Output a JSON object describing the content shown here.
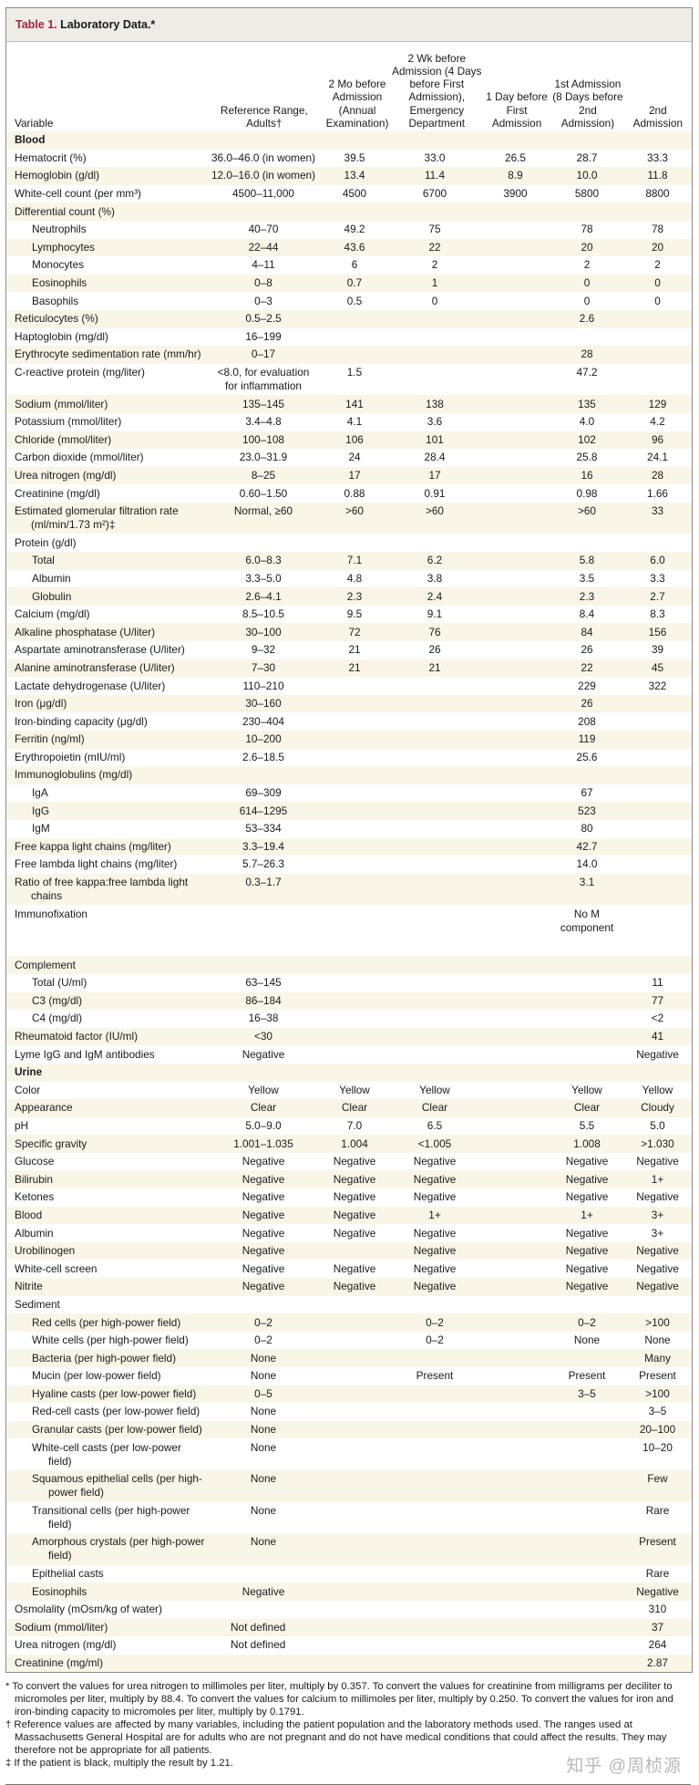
{
  "table": {
    "title_number": "Table 1.",
    "title_text": " Laboratory Data.*",
    "headers": [
      "Variable",
      "Reference Range, Adults†",
      "2 Mo before Admission (Annual Examination)",
      "2 Wk before Admission (4 Days before First Admission), Emergency Department",
      "1 Day before First Admission",
      "1st Admission (8 Days before 2nd Admission)",
      "2nd Admission"
    ],
    "rows": [
      {
        "type": "section",
        "cells": [
          "Blood",
          "",
          "",
          "",
          "",
          "",
          ""
        ]
      },
      {
        "cells": [
          "Hematocrit (%)",
          "36.0–46.0 (in women)",
          "39.5",
          "33.0",
          "26.5",
          "28.7",
          "33.3"
        ]
      },
      {
        "cells": [
          "Hemoglobin (g/dl)",
          "12.0–16.0 (in women)",
          "13.4",
          "11.4",
          "8.9",
          "10.0",
          "11.8"
        ]
      },
      {
        "cells": [
          "White-cell count (per mm³)",
          "4500–11,000",
          "4500",
          "6700",
          "3900",
          "5800",
          "8800"
        ]
      },
      {
        "cells": [
          "Differential count (%)",
          "",
          "",
          "",
          "",
          "",
          ""
        ]
      },
      {
        "indent": true,
        "cells": [
          "Neutrophils",
          "40–70",
          "49.2",
          "75",
          "",
          "78",
          "78"
        ]
      },
      {
        "indent": true,
        "cells": [
          "Lymphocytes",
          "22–44",
          "43.6",
          "22",
          "",
          "20",
          "20"
        ]
      },
      {
        "indent": true,
        "cells": [
          "Monocytes",
          "4–11",
          "6",
          "2",
          "",
          "2",
          "2"
        ]
      },
      {
        "indent": true,
        "cells": [
          "Eosinophils",
          "0–8",
          "0.7",
          "1",
          "",
          "0",
          "0"
        ]
      },
      {
        "indent": true,
        "cells": [
          "Basophils",
          "0–3",
          "0.5",
          "0",
          "",
          "0",
          "0"
        ]
      },
      {
        "cells": [
          "Reticulocytes (%)",
          "0.5–2.5",
          "",
          "",
          "",
          "2.6",
          ""
        ]
      },
      {
        "cells": [
          "Haptoglobin (mg/dl)",
          "16–199",
          "",
          "",
          "",
          "",
          ""
        ]
      },
      {
        "cells": [
          "Erythrocyte sedimentation rate (mm/hr)",
          "0–17",
          "",
          "",
          "",
          "28",
          ""
        ]
      },
      {
        "cells": [
          "C-reactive protein (mg/liter)",
          "<8.0, for evaluation for inflammation",
          "1.5",
          "",
          "",
          "47.2",
          ""
        ]
      },
      {
        "cells": [
          "Sodium (mmol/liter)",
          "135–145",
          "141",
          "138",
          "",
          "135",
          "129"
        ]
      },
      {
        "cells": [
          "Potassium (mmol/liter)",
          "3.4–4.8",
          "4.1",
          "3.6",
          "",
          "4.0",
          "4.2"
        ]
      },
      {
        "cells": [
          "Chloride (mmol/liter)",
          "100–108",
          "106",
          "101",
          "",
          "102",
          "96"
        ]
      },
      {
        "cells": [
          "Carbon dioxide (mmol/liter)",
          "23.0–31.9",
          "24",
          "28.4",
          "",
          "25.8",
          "24.1"
        ]
      },
      {
        "cells": [
          "Urea nitrogen (mg/dl)",
          "8–25",
          "17",
          "17",
          "",
          "16",
          "28"
        ]
      },
      {
        "cells": [
          "Creatinine (mg/dl)",
          "0.60–1.50",
          "0.88",
          "0.91",
          "",
          "0.98",
          "1.66"
        ]
      },
      {
        "cells": [
          "Estimated glomerular filtration rate (ml/min/1.73 m²)‡",
          "Normal, ≥60",
          ">60",
          ">60",
          "",
          ">60",
          "33"
        ]
      },
      {
        "cells": [
          "Protein (g/dl)",
          "",
          "",
          "",
          "",
          "",
          ""
        ]
      },
      {
        "indent": true,
        "cells": [
          "Total",
          "6.0–8.3",
          "7.1",
          "6.2",
          "",
          "5.8",
          "6.0"
        ]
      },
      {
        "indent": true,
        "cells": [
          "Albumin",
          "3.3–5.0",
          "4.8",
          "3.8",
          "",
          "3.5",
          "3.3"
        ]
      },
      {
        "indent": true,
        "cells": [
          "Globulin",
          "2.6–4.1",
          "2.3",
          "2.4",
          "",
          "2.3",
          "2.7"
        ]
      },
      {
        "cells": [
          "Calcium (mg/dl)",
          "8.5–10.5",
          "9.5",
          "9.1",
          "",
          "8.4",
          "8.3"
        ]
      },
      {
        "cells": [
          "Alkaline phosphatase (U/liter)",
          "30–100",
          "72",
          "76",
          "",
          "84",
          "156"
        ]
      },
      {
        "cells": [
          "Aspartate aminotransferase (U/liter)",
          "9–32",
          "21",
          "26",
          "",
          "26",
          "39"
        ]
      },
      {
        "cells": [
          "Alanine aminotransferase (U/liter)",
          "7–30",
          "21",
          "21",
          "",
          "22",
          "45"
        ]
      },
      {
        "cells": [
          "Lactate dehydrogenase (U/liter)",
          "110–210",
          "",
          "",
          "",
          "229",
          "322"
        ]
      },
      {
        "cells": [
          "Iron (μg/dl)",
          "30–160",
          "",
          "",
          "",
          "26",
          ""
        ]
      },
      {
        "cells": [
          "Iron-binding capacity (μg/dl)",
          "230–404",
          "",
          "",
          "",
          "208",
          ""
        ]
      },
      {
        "cells": [
          "Ferritin (ng/ml)",
          "10–200",
          "",
          "",
          "",
          "119",
          ""
        ]
      },
      {
        "cells": [
          "Erythropoietin (mIU/ml)",
          "2.6–18.5",
          "",
          "",
          "",
          "25.6",
          ""
        ]
      },
      {
        "cells": [
          "Immunoglobulins (mg/dl)",
          "",
          "",
          "",
          "",
          "",
          ""
        ]
      },
      {
        "indent": true,
        "cells": [
          "IgA",
          "69–309",
          "",
          "",
          "",
          "67",
          ""
        ]
      },
      {
        "indent": true,
        "cells": [
          "IgG",
          "614–1295",
          "",
          "",
          "",
          "523",
          ""
        ]
      },
      {
        "indent": true,
        "cells": [
          "IgM",
          "53–334",
          "",
          "",
          "",
          "80",
          ""
        ]
      },
      {
        "cells": [
          "Free kappa light chains (mg/liter)",
          "3.3–19.4",
          "",
          "",
          "",
          "42.7",
          ""
        ]
      },
      {
        "cells": [
          "Free lambda light chains (mg/liter)",
          "5.7–26.3",
          "",
          "",
          "",
          "14.0",
          ""
        ]
      },
      {
        "cells": [
          "Ratio of free kappa:free lambda light chains",
          "0.3–1.7",
          "",
          "",
          "",
          "3.1",
          ""
        ]
      },
      {
        "tall": true,
        "cells": [
          "Immunofixation",
          "",
          "",
          "",
          "",
          "No M component",
          ""
        ]
      },
      {
        "cells": [
          "Complement",
          "",
          "",
          "",
          "",
          "",
          ""
        ]
      },
      {
        "indent": true,
        "cells": [
          "Total (U/ml)",
          "63–145",
          "",
          "",
          "",
          "",
          "11"
        ]
      },
      {
        "indent": true,
        "cells": [
          "C3 (mg/dl)",
          "86–184",
          "",
          "",
          "",
          "",
          "77"
        ]
      },
      {
        "indent": true,
        "cells": [
          "C4 (mg/dl)",
          "16–38",
          "",
          "",
          "",
          "",
          "<2"
        ]
      },
      {
        "cells": [
          "Rheumatoid factor (IU/ml)",
          "<30",
          "",
          "",
          "",
          "",
          "41"
        ]
      },
      {
        "cells": [
          "Lyme IgG and IgM antibodies",
          "Negative",
          "",
          "",
          "",
          "",
          "Negative"
        ]
      },
      {
        "type": "section",
        "cells": [
          "Urine",
          "",
          "",
          "",
          "",
          "",
          ""
        ]
      },
      {
        "cells": [
          "Color",
          "Yellow",
          "Yellow",
          "Yellow",
          "",
          "Yellow",
          "Yellow"
        ]
      },
      {
        "cells": [
          "Appearance",
          "Clear",
          "Clear",
          "Clear",
          "",
          "Clear",
          "Cloudy"
        ]
      },
      {
        "cells": [
          "pH",
          "5.0–9.0",
          "7.0",
          "6.5",
          "",
          "5.5",
          "5.0"
        ]
      },
      {
        "cells": [
          "Specific gravity",
          "1.001–1.035",
          "1.004",
          "<1.005",
          "",
          "1.008",
          ">1.030"
        ]
      },
      {
        "cells": [
          "Glucose",
          "Negative",
          "Negative",
          "Negative",
          "",
          "Negative",
          "Negative"
        ]
      },
      {
        "cells": [
          "Bilirubin",
          "Negative",
          "Negative",
          "Negative",
          "",
          "Negative",
          "1+"
        ]
      },
      {
        "cells": [
          "Ketones",
          "Negative",
          "Negative",
          "Negative",
          "",
          "Negative",
          "Negative"
        ]
      },
      {
        "cells": [
          "Blood",
          "Negative",
          "Negative",
          "1+",
          "",
          "1+",
          "3+"
        ]
      },
      {
        "cells": [
          "Albumin",
          "Negative",
          "Negative",
          "Negative",
          "",
          "Negative",
          "3+"
        ]
      },
      {
        "cells": [
          "Urobilinogen",
          "Negative",
          "",
          "Negative",
          "",
          "Negative",
          "Negative"
        ]
      },
      {
        "cells": [
          "White-cell screen",
          "Negative",
          "Negative",
          "Negative",
          "",
          "Negative",
          "Negative"
        ]
      },
      {
        "cells": [
          "Nitrite",
          "Negative",
          "Negative",
          "Negative",
          "",
          "Negative",
          "Negative"
        ]
      },
      {
        "cells": [
          "Sediment",
          "",
          "",
          "",
          "",
          "",
          ""
        ]
      },
      {
        "indent": true,
        "cells": [
          "Red cells (per high-power field)",
          "0–2",
          "",
          "0–2",
          "",
          "0–2",
          ">100"
        ]
      },
      {
        "indent": true,
        "cells": [
          "White cells (per high-power field)",
          "0–2",
          "",
          "0–2",
          "",
          "None",
          "None"
        ]
      },
      {
        "indent": true,
        "cells": [
          "Bacteria (per high-power field)",
          "None",
          "",
          "",
          "",
          "",
          "Many"
        ]
      },
      {
        "indent": true,
        "cells": [
          "Mucin (per low-power field)",
          "None",
          "",
          "Present",
          "",
          "Present",
          "Present"
        ]
      },
      {
        "indent": true,
        "cells": [
          "Hyaline casts (per low-power field)",
          "0–5",
          "",
          "",
          "",
          "3–5",
          ">100"
        ]
      },
      {
        "indent": true,
        "cells": [
          "Red-cell casts (per low-power field)",
          "None",
          "",
          "",
          "",
          "",
          "3–5"
        ]
      },
      {
        "indent": true,
        "cells": [
          "Granular casts (per low-power field)",
          "None",
          "",
          "",
          "",
          "",
          "20–100"
        ]
      },
      {
        "indent": true,
        "cells": [
          "White-cell casts (per low-power field)",
          "None",
          "",
          "",
          "",
          "",
          "10–20"
        ]
      },
      {
        "indent": true,
        "cells": [
          "Squamous epithelial cells (per high-power field)",
          "None",
          "",
          "",
          "",
          "",
          "Few"
        ]
      },
      {
        "indent": true,
        "cells": [
          "Transitional cells (per high-power field)",
          "None",
          "",
          "",
          "",
          "",
          "Rare"
        ]
      },
      {
        "indent": true,
        "cells": [
          "Amorphous crystals (per high-power field)",
          "None",
          "",
          "",
          "",
          "",
          "Present"
        ]
      },
      {
        "indent": true,
        "cells": [
          "Epithelial casts",
          "",
          "",
          "",
          "",
          "",
          "Rare"
        ]
      },
      {
        "indent": true,
        "cells": [
          "Eosinophils",
          "Negative",
          "",
          "",
          "",
          "",
          "Negative"
        ]
      },
      {
        "cells": [
          "Osmolality (mOsm/kg of water)",
          "",
          "",
          "",
          "",
          "",
          "310"
        ]
      },
      {
        "refleft": true,
        "cells": [
          "Sodium (mmol/liter)",
          "Not defined",
          "",
          "",
          "",
          "",
          "37"
        ]
      },
      {
        "refleft": true,
        "cells": [
          "Urea nitrogen (mg/dl)",
          "Not defined",
          "",
          "",
          "",
          "",
          "264"
        ]
      },
      {
        "cells": [
          "Creatinine (mg/ml)",
          "",
          "",
          "",
          "",
          "",
          "2.87"
        ]
      }
    ]
  },
  "footnotes": [
    "* To convert the values for urea nitrogen to millimoles per liter, multiply by 0.357. To convert the values for creatinine from milligrams per deciliter to micromoles per liter, multiply by 88.4. To convert the values for calcium to millimoles per liter, multiply by 0.250. To convert the values for iron and iron-binding capacity to micromoles per liter, multiply by 0.1791.",
    "† Reference values are affected by many variables, including the patient population and the laboratory methods used. The ranges used at Massachusetts General Hospital are for adults who are not pregnant and do not have medical conditions that could affect the results. They may therefore not be appropriate for all patients.",
    "‡ If the patient is black, multiply the result by 1.21."
  ],
  "watermark": "知乎 @周桢源"
}
